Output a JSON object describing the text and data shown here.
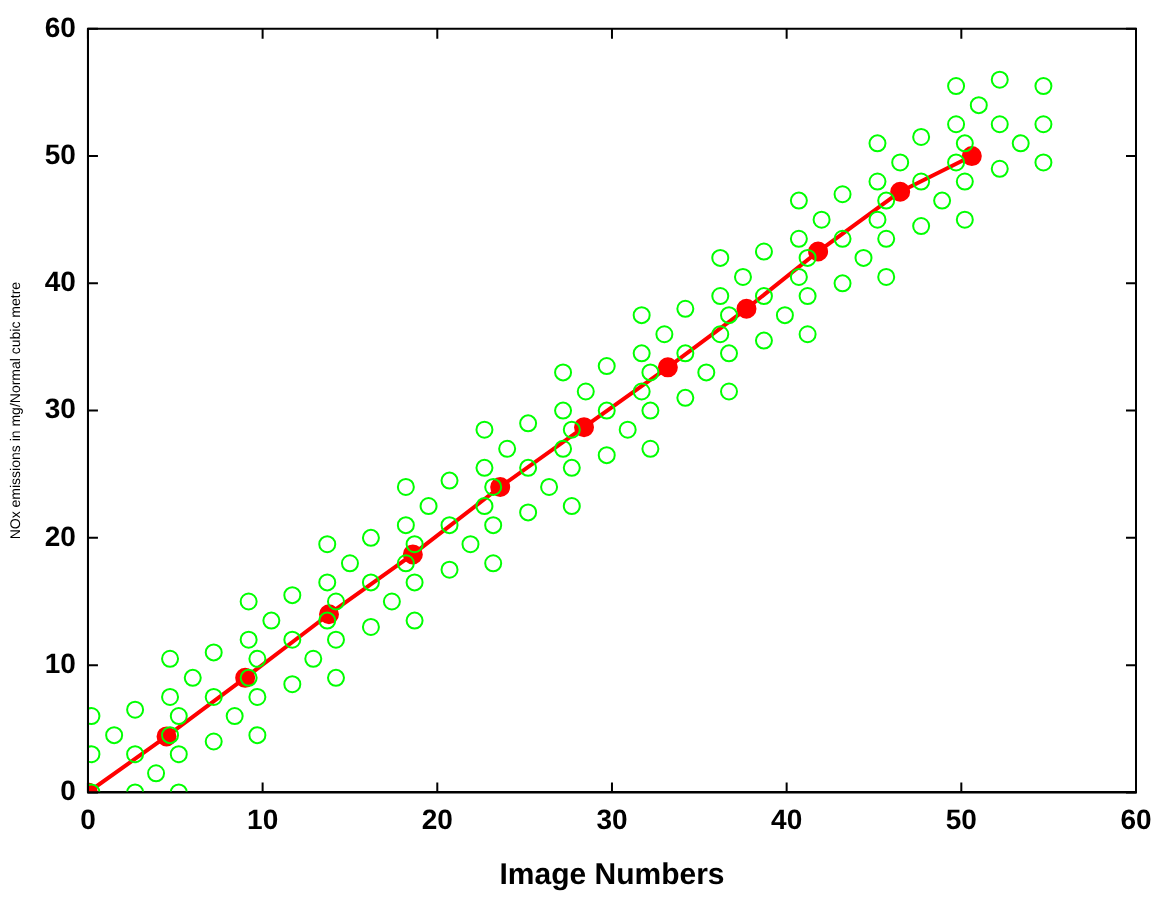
{
  "chart_data": {
    "type": "scatter",
    "xlabel": "Image Numbers",
    "ylabel": "NOx emissions in mg/Normal cubic metre",
    "xlim": [
      0,
      60
    ],
    "ylim": [
      0,
      60
    ],
    "xticks": [
      0,
      10,
      20,
      30,
      40,
      50,
      60
    ],
    "yticks": [
      0,
      10,
      20,
      30,
      40,
      50,
      60
    ],
    "grid": false,
    "legend": false,
    "marker": "circle",
    "series": [
      {
        "color": "#00ff00",
        "x": [
          0.2,
          5.2,
          0.2,
          5.2,
          2.7,
          2.7,
          0.2,
          5.2,
          2.7,
          1.5,
          3.9,
          4.7,
          9.7,
          4.7,
          9.7,
          7.2,
          7.2,
          4.7,
          9.7,
          7.2,
          6,
          8.4,
          9.2,
          14.2,
          9.2,
          14.2,
          11.7,
          11.7,
          9.2,
          14.2,
          11.7,
          10.5,
          12.9,
          13.7,
          18.7,
          13.7,
          18.7,
          16.2,
          16.2,
          13.7,
          18.7,
          16.2,
          15,
          17.4,
          18.2,
          23.2,
          18.2,
          23.2,
          20.7,
          20.7,
          18.2,
          23.2,
          20.7,
          19.5,
          21.9,
          22.7,
          27.7,
          22.7,
          27.7,
          25.2,
          25.2,
          22.7,
          27.7,
          25.2,
          24,
          26.4,
          27.2,
          32.2,
          27.2,
          32.2,
          29.7,
          29.7,
          27.2,
          32.2,
          29.7,
          28.5,
          30.9,
          31.7,
          36.7,
          31.7,
          36.7,
          34.2,
          34.2,
          31.7,
          36.7,
          34.2,
          33,
          35.4,
          36.2,
          41.2,
          36.2,
          41.2,
          38.7,
          38.7,
          36.2,
          41.2,
          38.7,
          37.5,
          39.9,
          40.7,
          45.7,
          40.7,
          45.7,
          43.2,
          43.2,
          40.7,
          45.7,
          43.2,
          42,
          44.4,
          45.2,
          50.2,
          45.2,
          50.2,
          47.7,
          47.7,
          45.2,
          50.2,
          47.7,
          46.5,
          48.9,
          49.7,
          54.7,
          49.7,
          54.7,
          52.2,
          52.2,
          49.7,
          54.7,
          52.2,
          51,
          53.4
        ],
        "values": [
          0,
          0,
          6,
          6,
          0,
          6.5,
          3,
          3,
          3,
          4.5,
          1.5,
          4.5,
          4.5,
          10.5,
          10.5,
          4,
          11,
          7.5,
          7.5,
          7.5,
          9,
          6,
          9,
          9,
          15,
          15,
          8.5,
          15.5,
          12,
          12,
          12,
          13.5,
          10.5,
          13.5,
          13.5,
          19.5,
          19.5,
          13,
          20,
          16.5,
          16.5,
          16.5,
          18,
          15,
          18,
          18,
          24,
          24,
          17.5,
          24.5,
          21,
          21,
          21,
          22.5,
          19.5,
          22.5,
          22.5,
          28.5,
          28.5,
          22,
          29,
          25.5,
          25.5,
          25.5,
          27,
          24,
          27,
          27,
          33,
          33,
          26.5,
          33.5,
          30,
          30,
          30,
          31.5,
          28.5,
          31.5,
          31.5,
          37.5,
          37.5,
          31,
          38,
          34.5,
          34.5,
          34.5,
          36,
          33,
          36,
          36,
          42,
          42,
          35.5,
          42.5,
          39,
          39,
          39,
          40.5,
          37.5,
          40.5,
          40.5,
          46.5,
          46.5,
          40,
          47,
          43.5,
          43.5,
          43.5,
          45,
          42,
          45,
          45,
          51,
          51,
          44.5,
          51.5,
          48,
          48,
          48,
          49.5,
          46.5,
          49.5,
          49.5,
          55.5,
          55.5,
          49,
          56,
          52.5,
          52.5,
          52.5,
          54,
          51
        ]
      },
      {
        "type": "line",
        "color": "#ff0000",
        "x": [
          0,
          4.5,
          9,
          13.8,
          18.6,
          23.6,
          28.4,
          33.2,
          37.7,
          41.8,
          46.5,
          50.6
        ],
        "values": [
          0,
          4.4,
          9,
          14,
          18.7,
          24,
          28.7,
          33.4,
          38,
          42.5,
          47.2,
          50
        ]
      }
    ]
  }
}
